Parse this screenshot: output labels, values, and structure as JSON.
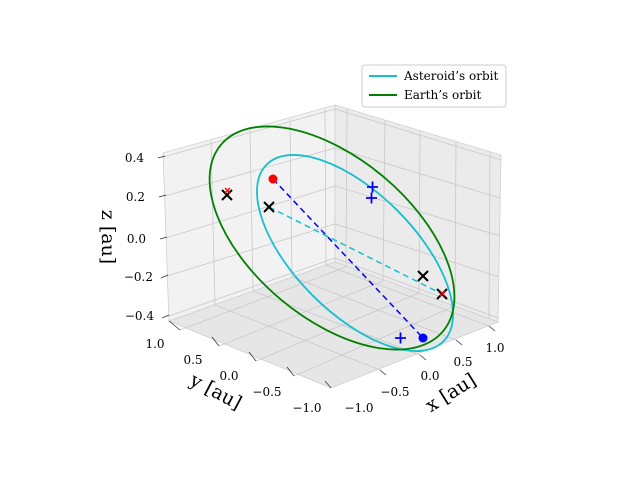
{
  "chart_data": {
    "type": "line",
    "projection": "3d",
    "title": "",
    "xlabel": "x [au]",
    "ylabel": "y [au]",
    "zlabel": "z [au]",
    "xlim": [
      -1.2,
      1.2
    ],
    "ylim": [
      -1.2,
      1.2
    ],
    "zlim": [
      -0.45,
      0.45
    ],
    "grid": true,
    "legend_position": "top-right",
    "x_ticks": [
      "−1.0",
      "−0.5",
      "0.0",
      "0.5",
      "1.0"
    ],
    "y_ticks": [
      "−1.0",
      "−0.5",
      "0.0",
      "0.5",
      "1.0"
    ],
    "z_ticks": [
      "−0.4",
      "−0.2",
      "0.0",
      "0.2",
      "0.4"
    ],
    "series": [
      {
        "name": "Asteroid’s orbit",
        "color": "#17becf",
        "style": "solid",
        "ellipse": {
          "center": [
            0.1,
            0.0,
            0.0
          ],
          "a": 1.0,
          "b": 0.8,
          "tilt_deg": 26,
          "node_deg": 40
        }
      },
      {
        "name": "Earth’s orbit",
        "color": "#008000",
        "style": "solid",
        "ellipse": {
          "center": [
            0.0,
            0.0,
            0.0
          ],
          "a": 1.0,
          "b": 1.0,
          "tilt_deg": 22,
          "node_deg": 35
        }
      }
    ],
    "connectors": [
      {
        "from": [
          -0.35,
          0.85,
          0.25
        ],
        "to": [
          0.55,
          -0.7,
          -0.15
        ],
        "color": "#0000ff",
        "style": "dashed"
      },
      {
        "from": [
          -0.45,
          0.7,
          0.12
        ],
        "to": [
          0.75,
          -0.4,
          -0.3
        ],
        "color": "#17becf",
        "style": "dashed"
      }
    ],
    "markers": [
      {
        "symbol": "dot",
        "color": "#ff0000",
        "pos": [
          -0.35,
          0.85,
          0.25
        ]
      },
      {
        "symbol": "dot",
        "color": "#0000ff",
        "pos": [
          0.55,
          -0.7,
          -0.15
        ]
      },
      {
        "symbol": "plus",
        "color": "#0000ff",
        "pos": [
          0.6,
          0.15,
          0.3
        ]
      },
      {
        "symbol": "plus",
        "color": "#0000ff",
        "pos": [
          0.5,
          0.1,
          0.22
        ]
      },
      {
        "symbol": "plus",
        "color": "#0000ff",
        "pos": [
          0.4,
          -0.75,
          -0.1
        ]
      },
      {
        "symbol": "cross",
        "color": "#000000",
        "pos": [
          -0.6,
          0.9,
          0.1
        ]
      },
      {
        "symbol": "cross",
        "color": "#ff0000",
        "pos": [
          -0.6,
          0.9,
          0.1
        ],
        "small": true
      },
      {
        "symbol": "cross",
        "color": "#000000",
        "pos": [
          -0.45,
          0.7,
          0.12
        ]
      },
      {
        "symbol": "cross",
        "color": "#000000",
        "pos": [
          0.75,
          -0.3,
          -0.1
        ]
      },
      {
        "symbol": "cross",
        "color": "#000000",
        "pos": [
          0.95,
          -0.4,
          -0.3
        ]
      },
      {
        "symbol": "cross",
        "color": "#ff0000",
        "pos": [
          0.95,
          -0.4,
          -0.3
        ],
        "small": true
      }
    ]
  }
}
